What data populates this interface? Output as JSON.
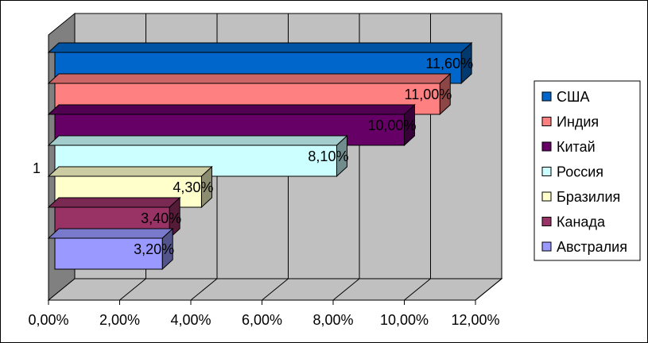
{
  "chart_data": {
    "type": "bar",
    "orientation": "horizontal",
    "style": "3d-clustered",
    "category_label": "1",
    "series": [
      {
        "name": "США",
        "value": 11.6,
        "label": "11,60%",
        "color": "#0066CC"
      },
      {
        "name": "Индия",
        "value": 11.0,
        "label": "11,00%",
        "color": "#FF8080"
      },
      {
        "name": "Китай",
        "value": 10.0,
        "label": "10,00%",
        "color": "#660066"
      },
      {
        "name": "Россия",
        "value": 8.1,
        "label": "8,10%",
        "color": "#CCFFFF"
      },
      {
        "name": "Бразилия",
        "value": 4.3,
        "label": "4,30%",
        "color": "#FFFFCC"
      },
      {
        "name": "Канада",
        "value": 3.4,
        "label": "3,40%",
        "color": "#993366"
      },
      {
        "name": "Австралия",
        "value": 3.2,
        "label": "3,20%",
        "color": "#9999FF"
      }
    ],
    "x_ticks": [
      "0,00%",
      "2,00%",
      "4,00%",
      "6,00%",
      "8,00%",
      "10,00%",
      "12,00%"
    ],
    "xlim": [
      0,
      12
    ],
    "grid": true,
    "legend_position": "right",
    "wall_color": "#C0C0C0"
  }
}
